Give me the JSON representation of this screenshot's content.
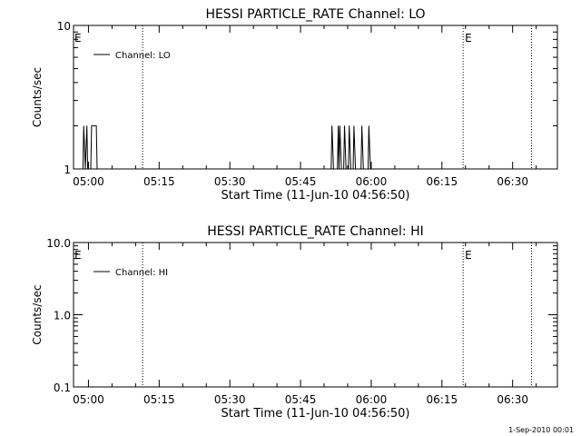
{
  "chart_data": [
    {
      "type": "line",
      "title": "HESSI PARTICLE_RATE Channel: LO",
      "xlabel": "Start Time (11-Jun-10 04:56:50)",
      "ylabel": "Counts/sec",
      "x_unit": "UT time (hh:mm)",
      "xlim": [
        "04:56:50",
        "06:39:30"
      ],
      "yscale": "log",
      "ylim": [
        1,
        10
      ],
      "yticks": [
        1,
        10
      ],
      "ytick_labels": [
        "1",
        "10"
      ],
      "xticks": [
        "05:00",
        "05:15",
        "05:30",
        "05:45",
        "06:00",
        "06:15",
        "06:30"
      ],
      "legend": {
        "label": "Channel: LO",
        "placement": "top-left"
      },
      "series": [
        {
          "name": "Channel: LO",
          "points": [
            [
              "04:56:50",
              1
            ],
            [
              "04:58:50",
              1
            ],
            [
              "04:59:00",
              2
            ],
            [
              "04:59:20",
              1
            ],
            [
              "04:59:40",
              2
            ],
            [
              "04:59:50",
              1
            ],
            [
              "05:00:30",
              1
            ],
            [
              "05:00:40",
              2
            ],
            [
              "05:01:40",
              2
            ],
            [
              "05:01:50",
              1
            ],
            [
              "05:51:30",
              1
            ],
            [
              "05:51:40",
              2
            ],
            [
              "05:52:00",
              1
            ],
            [
              "05:52:50",
              1
            ],
            [
              "05:53:00",
              2
            ],
            [
              "05:53:10",
              1
            ],
            [
              "05:53:20",
              2
            ],
            [
              "05:53:40",
              1
            ],
            [
              "05:54:10",
              1
            ],
            [
              "05:54:20",
              2
            ],
            [
              "05:54:40",
              1
            ],
            [
              "05:55:10",
              1
            ],
            [
              "05:55:20",
              2
            ],
            [
              "05:55:40",
              1
            ],
            [
              "05:56:10",
              1
            ],
            [
              "05:56:20",
              2
            ],
            [
              "05:56:40",
              1
            ],
            [
              "05:57:50",
              1
            ],
            [
              "05:58:00",
              2
            ],
            [
              "05:58:20",
              1
            ],
            [
              "05:59:20",
              1
            ],
            [
              "05:59:30",
              2
            ],
            [
              "05:59:50",
              1
            ],
            [
              "06:00:00",
              1
            ]
          ]
        }
      ],
      "markers": [
        {
          "time": "05:11:30",
          "label": "",
          "style": "dotted"
        },
        {
          "time": "06:19:30",
          "label": "E",
          "style": "dotted"
        },
        {
          "time": "06:34:00",
          "label": "",
          "style": "dotted"
        }
      ],
      "start_label": "E",
      "grid": false
    },
    {
      "type": "line",
      "title": "HESSI PARTICLE_RATE Channel: HI",
      "xlabel": "Start Time (11-Jun-10 04:56:50)",
      "ylabel": "Counts/sec",
      "x_unit": "UT time (hh:mm)",
      "xlim": [
        "04:56:50",
        "06:39:30"
      ],
      "yscale": "log",
      "ylim": [
        0.1,
        10
      ],
      "yticks": [
        0.1,
        1,
        10
      ],
      "ytick_labels": [
        "0.1",
        "1.0",
        "10.0"
      ],
      "xticks": [
        "05:00",
        "05:15",
        "05:30",
        "05:45",
        "06:00",
        "06:15",
        "06:30"
      ],
      "legend": {
        "label": "Channel: HI",
        "placement": "top-left"
      },
      "series": [
        {
          "name": "Channel: HI",
          "points": []
        }
      ],
      "markers": [
        {
          "time": "05:11:30",
          "label": "",
          "style": "dotted"
        },
        {
          "time": "06:19:30",
          "label": "E",
          "style": "dotted"
        },
        {
          "time": "06:34:00",
          "label": "",
          "style": "dotted"
        }
      ],
      "start_label": "E",
      "grid": false
    }
  ],
  "footer": "1-Sep-2010 00:01"
}
